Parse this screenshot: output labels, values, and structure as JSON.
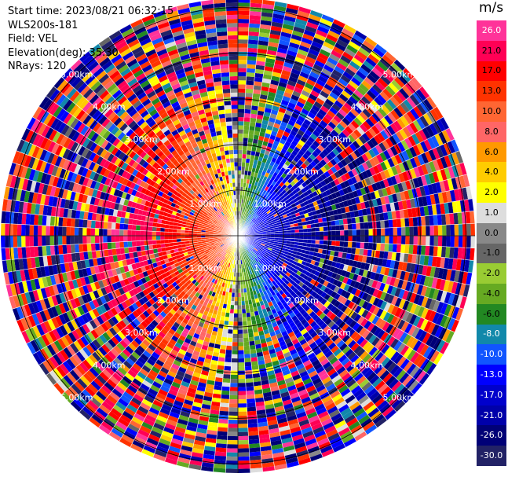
{
  "header": {
    "start_time": "Start time: 2023/08/21 06:32:15",
    "instrument": "WLS200s-181",
    "field": "Field: VEL",
    "elevation": "Elevation(deg): 35.30",
    "nrays": "NRays: 120"
  },
  "chart_data": {
    "type": "heatmap",
    "projection": "polar PPI",
    "field": "VEL",
    "units": "m/s",
    "n_rays": 120,
    "range_rings_km": [
      1,
      2,
      3,
      4,
      5
    ],
    "range_ring_labels": [
      "1.00km",
      "2.00km",
      "3.00km",
      "4.00km",
      "5.00km"
    ],
    "colorbar": {
      "title": "m/s",
      "tick_labels": [
        "26.0",
        "21.0",
        "17.0",
        "13.0",
        "10.0",
        "8.0",
        "6.0",
        "4.0",
        "2.0",
        "1.0",
        "0.0",
        "-1.0",
        "-2.0",
        "-4.0",
        "-6.0",
        "-8.0",
        "-10.0",
        "-13.0",
        "-17.0",
        "-21.0",
        "-26.0",
        "-30.0"
      ],
      "colors": [
        "#ff3399",
        "#ff0055",
        "#ff0000",
        "#ff3300",
        "#ff6633",
        "#ff6666",
        "#ff9900",
        "#ffcc00",
        "#ffff00",
        "#dddddd",
        "#888888",
        "#666666",
        "#99cc33",
        "#66aa22",
        "#228822",
        "#1188aa",
        "#1155ff",
        "#0000ff",
        "#0000cc",
        "#0000aa",
        "#000077",
        "#222266"
      ]
    },
    "wind_pattern": {
      "description_units": "m/s",
      "max_speed": 25,
      "approaching_direction_deg": 270
    }
  }
}
